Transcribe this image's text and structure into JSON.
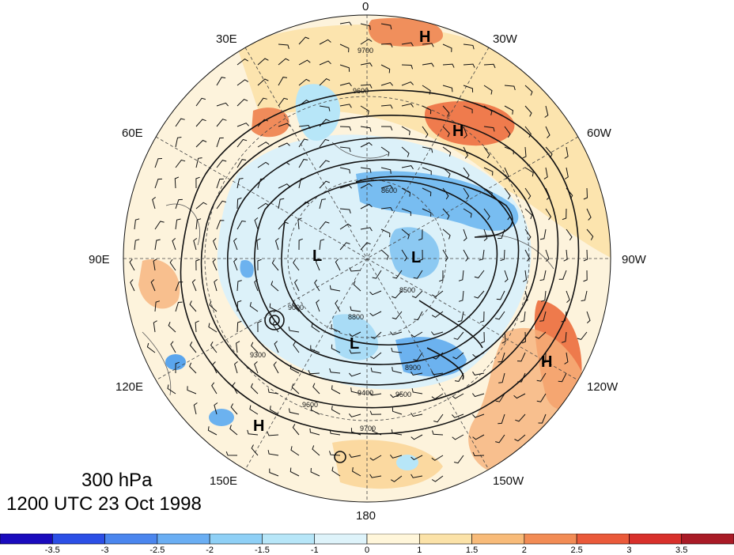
{
  "map": {
    "level_label": "300 hPa",
    "valid_time": "1200 UTC 23 Oct 1998",
    "longitude_labels": [
      "0",
      "30W",
      "60W",
      "90W",
      "120W",
      "150W",
      "180",
      "150E",
      "120E",
      "90E",
      "60E",
      "30E"
    ],
    "pressure_centers": [
      "H",
      "H",
      "H",
      "H",
      "L",
      "L",
      "L"
    ],
    "contour_labels": [
      "9700",
      "9600",
      "9500",
      "9400",
      "9300",
      "9000",
      "8900",
      "8800",
      "8600",
      "8500"
    ]
  },
  "colorbar": {
    "tick_labels": [
      "-3.5",
      "-3",
      "-2.5",
      "-2",
      "-1.5",
      "-1",
      "0",
      "1",
      "1.5",
      "2",
      "2.5",
      "3",
      "3.5"
    ],
    "colors": [
      "#1a0bbd",
      "#2c4fe6",
      "#4b86ee",
      "#6aaef3",
      "#8fd0f6",
      "#b7e6f8",
      "#def3fa",
      "#fff6da",
      "#fbe2a8",
      "#f8bb79",
      "#f28c55",
      "#ea5a3a",
      "#d8302b",
      "#a91b26"
    ]
  }
}
